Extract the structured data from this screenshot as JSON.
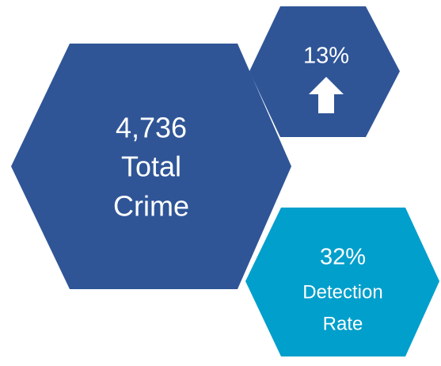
{
  "hexagons": [
    {
      "lines": [
        "4,736",
        "Total",
        "Crime"
      ]
    },
    {
      "lines": [
        "13%"
      ]
    },
    {
      "lines": [
        "32%",
        "Detection",
        "Rate"
      ]
    }
  ]
}
